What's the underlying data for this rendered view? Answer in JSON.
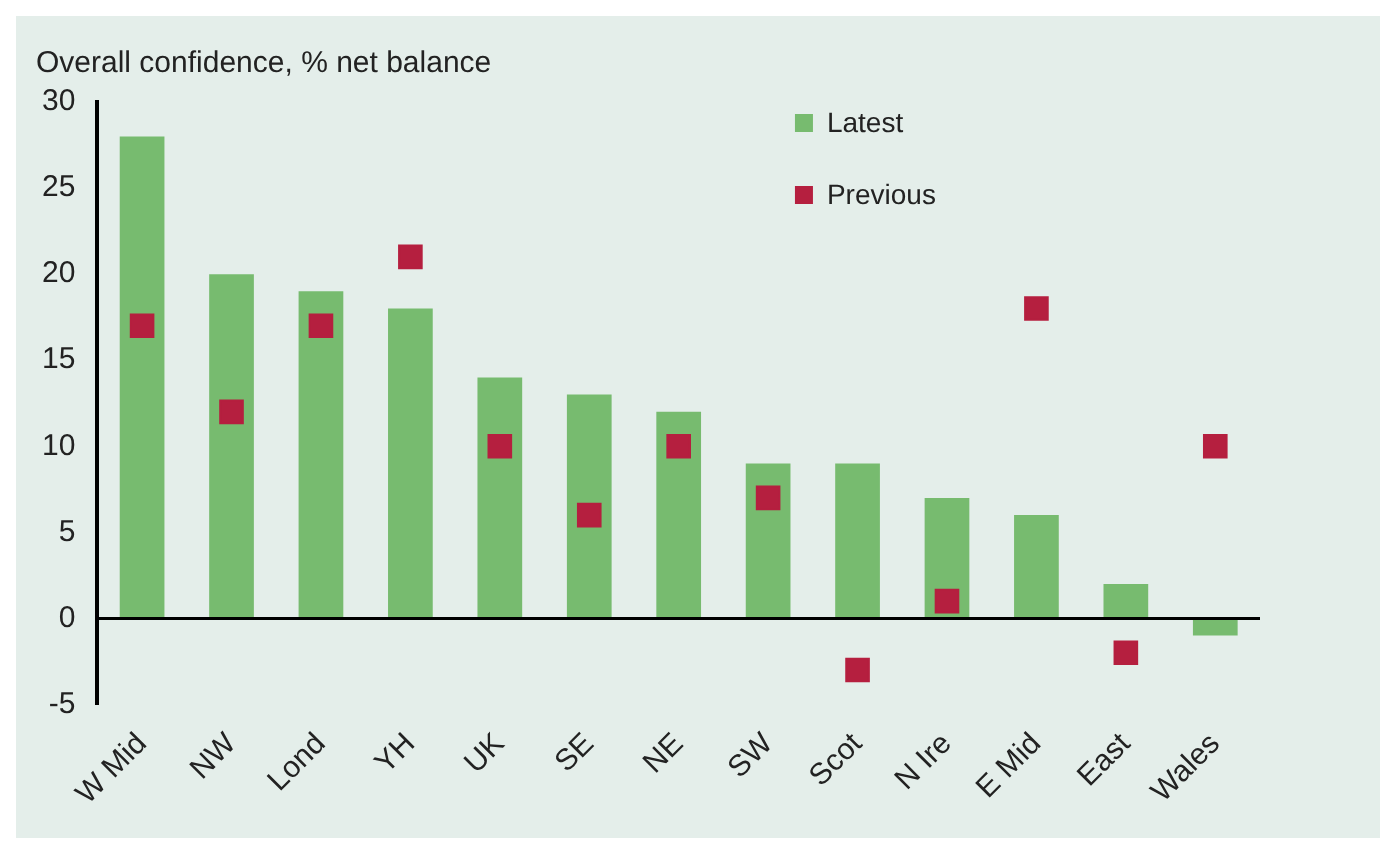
{
  "chart_data": {
    "type": "bar",
    "title": "Overall confidence, % net balance",
    "categories": [
      "W Mid",
      "NW",
      "Lond",
      "YH",
      "UK",
      "SE",
      "NE",
      "SW",
      "Scot",
      "N Ire",
      "E Mid",
      "East",
      "Wales"
    ],
    "series": [
      {
        "name": "Latest",
        "color": "#77bb6f",
        "values": [
          28,
          20,
          19,
          18,
          14,
          13,
          12,
          9,
          9,
          7,
          6,
          2,
          -1
        ]
      },
      {
        "name": "Previous",
        "type": "scatter",
        "color": "#b51f3f",
        "marker": "square",
        "values": [
          17,
          12,
          17,
          21,
          10,
          6,
          10,
          7,
          -3,
          1,
          18,
          -2,
          10
        ]
      }
    ],
    "ylim": [
      -5,
      30
    ],
    "yticks": [
      -5,
      0,
      5,
      10,
      15,
      20,
      25,
      30
    ],
    "legend": "top right"
  }
}
